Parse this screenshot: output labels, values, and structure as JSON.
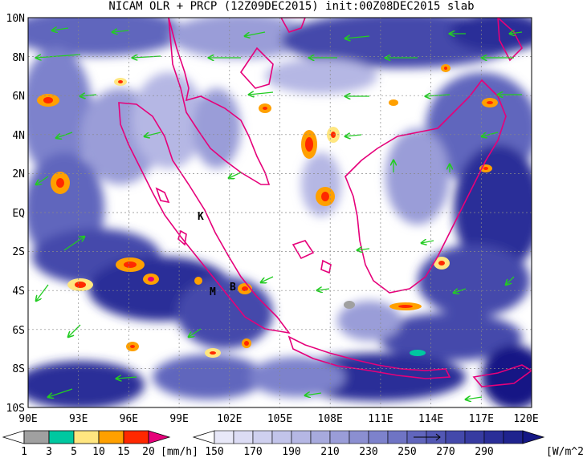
{
  "title": "NICAM OLR + PRCP (12Z09DEC2015) init:00Z08DEC2015 slab",
  "axes": {
    "x_ticks": [
      "90E",
      "93E",
      "96E",
      "99E",
      "102E",
      "105E",
      "108E",
      "111E",
      "114E",
      "117E",
      "120E"
    ],
    "y_ticks": [
      "10N",
      "8N",
      "6N",
      "4N",
      "2N",
      "EQ",
      "2S",
      "4S",
      "6S",
      "8S",
      "10S"
    ]
  },
  "map_labels": [
    "K",
    "M",
    "B"
  ],
  "precip_legend": {
    "labels": [
      "1",
      "3",
      "5",
      "10",
      "15",
      "20"
    ],
    "unit": "[mm/h]",
    "colors": [
      "#ffffff",
      "#a0a0a0",
      "#00c8a0",
      "#ffe680",
      "#ffa000",
      "#ff2800",
      "#e6007a"
    ]
  },
  "olr_legend": {
    "labels": [
      "150",
      "170",
      "190",
      "210",
      "230",
      "250",
      "270",
      "290"
    ],
    "unit": "[W/m^2]",
    "colors": [
      "#ffffff",
      "#e8e8f8",
      "#cfd0ef",
      "#b5b7e4",
      "#9a9dd8",
      "#7d82cc",
      "#6166bd",
      "#4449ab",
      "#2a2e98",
      "#151885"
    ]
  },
  "colors": {
    "coast": "#e6007a",
    "wind": "#22cc22",
    "cloud_dark": "#1a1e8a"
  }
}
